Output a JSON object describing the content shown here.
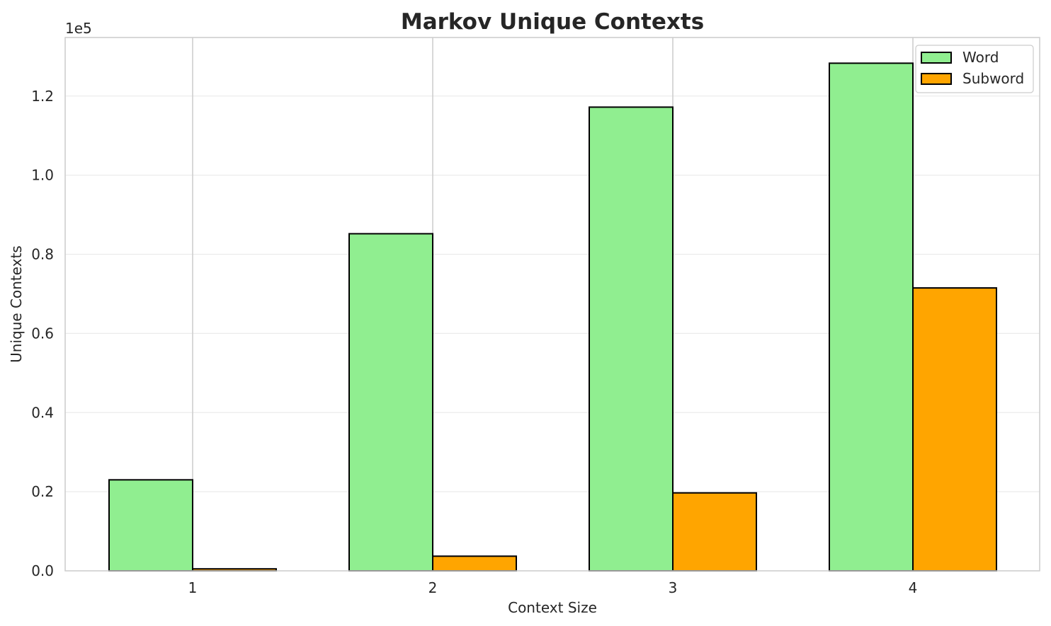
{
  "chart_data": {
    "type": "bar",
    "title": "Markov Unique Contexts",
    "xlabel": "Context Size",
    "ylabel": "Unique Contexts",
    "y_scale_label": "1e5",
    "categories": [
      "1",
      "2",
      "3",
      "4"
    ],
    "series": [
      {
        "name": "Word",
        "color": "#90ee90",
        "values": [
          23000,
          85200,
          117200,
          128300
        ]
      },
      {
        "name": "Subword",
        "color": "#ffa500",
        "values": [
          500,
          3700,
          19700,
          71500
        ]
      }
    ],
    "ylim": [
      0,
      134800
    ],
    "yticks": [
      0,
      20000,
      40000,
      60000,
      80000,
      100000,
      120000
    ],
    "ytick_labels": [
      "0.0",
      "0.2",
      "0.4",
      "0.6",
      "0.8",
      "1.0",
      "1.2"
    ],
    "grid": true,
    "legend_position": "top-right"
  }
}
